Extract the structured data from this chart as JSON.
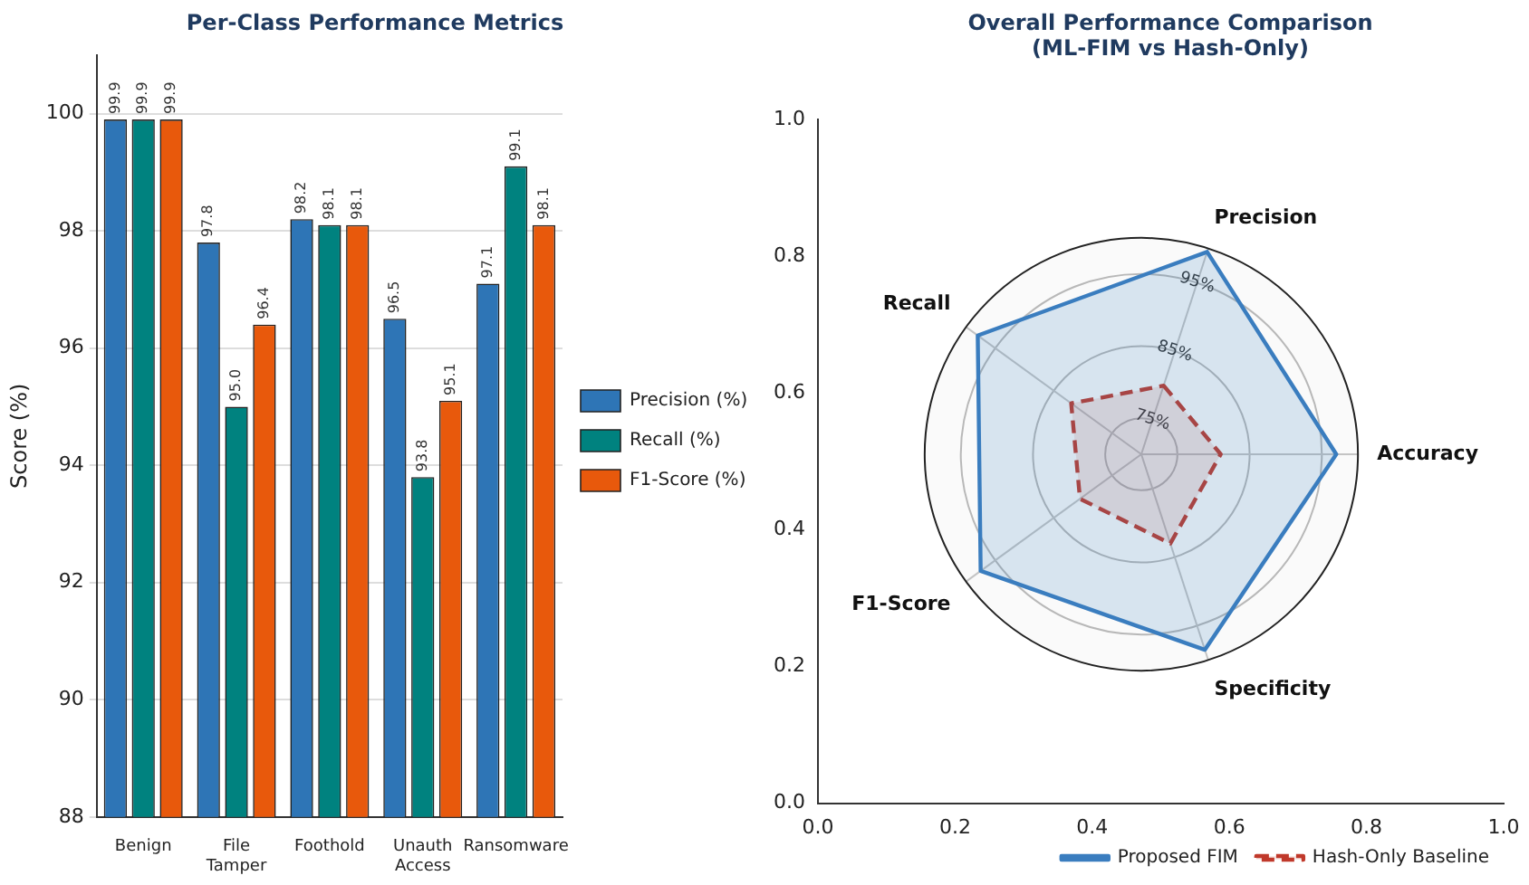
{
  "chart_data": [
    {
      "type": "bar",
      "title": "Per-Class Performance Metrics",
      "ylabel": "Score (%)",
      "categories": [
        "Benign",
        "File Tamper",
        "Foothold",
        "Unauth Access",
        "Ransomware"
      ],
      "series": [
        {
          "name": "Precision (%)",
          "color": "#2e75b6",
          "values": [
            99.9,
            97.8,
            98.2,
            96.5,
            97.1
          ],
          "value_labels": [
            "99.9",
            "97.8",
            "98.2",
            "96.5",
            "97.1"
          ]
        },
        {
          "name": "Recall (%)",
          "color": "#00827f",
          "values": [
            99.9,
            95.0,
            98.1,
            93.8,
            99.1
          ],
          "value_labels": [
            "99.9",
            "95.0",
            "98.1",
            "93.8",
            "99.1"
          ]
        },
        {
          "name": "F1-Score (%)",
          "color": "#e8590c",
          "values": [
            99.9,
            96.4,
            98.1,
            95.1,
            98.1
          ],
          "value_labels": [
            "99.9",
            "96.4",
            "98.1",
            "95.1",
            "98.1"
          ]
        }
      ],
      "ylim": [
        88,
        101
      ],
      "yticks": [
        88,
        90,
        92,
        94,
        96,
        98,
        100
      ],
      "grid": "y",
      "legend": "right"
    },
    {
      "type": "radar",
      "title": "Overall Performance Comparison\n(ML-FIM vs Hash-Only)",
      "categories": [
        "Precision",
        "Accuracy",
        "Specificity",
        "F1-Score",
        "Recall"
      ],
      "series": [
        {
          "name": "Proposed FIM",
          "color": "#3a7dbf",
          "line_style": "solid",
          "values": [
            99.5,
            97.0,
            98.5,
            97.5,
            98.0
          ]
        },
        {
          "name": "Hash-Only Baseline",
          "color": "#c0392b",
          "line_style": "dashed",
          "values": [
            80.0,
            81.0,
            83.0,
            80.5,
            82.0
          ]
        }
      ],
      "ylim": [
        70,
        100
      ],
      "yticks": [
        {
          "value": 75,
          "label": "75%"
        },
        {
          "value": 85,
          "label": "85%"
        },
        {
          "value": 95,
          "label": "95%"
        }
      ],
      "grid": true,
      "legend": "bottom right",
      "marker": "none"
    },
    {
      "type": "scatter",
      "xlim": [
        0,
        1
      ],
      "xticks": [
        {
          "value": 0,
          "label": "0.0"
        },
        {
          "value": 0.2,
          "label": "0.2"
        },
        {
          "value": 0.4,
          "label": "0.4"
        },
        {
          "value": 0.6,
          "label": "0.6"
        },
        {
          "value": 0.8,
          "label": "0.8"
        },
        {
          "value": 1,
          "label": "1.0"
        }
      ],
      "ylim": [
        0,
        1
      ],
      "yticks": [
        {
          "value": 0,
          "label": "0.0"
        },
        {
          "value": 0.2,
          "label": "0.2"
        },
        {
          "value": 0.4,
          "label": "0.4"
        },
        {
          "value": 0.6,
          "label": "0.6"
        },
        {
          "value": 0.8,
          "label": "0.8"
        },
        {
          "value": 1,
          "label": "1.0"
        }
      ]
    }
  ]
}
